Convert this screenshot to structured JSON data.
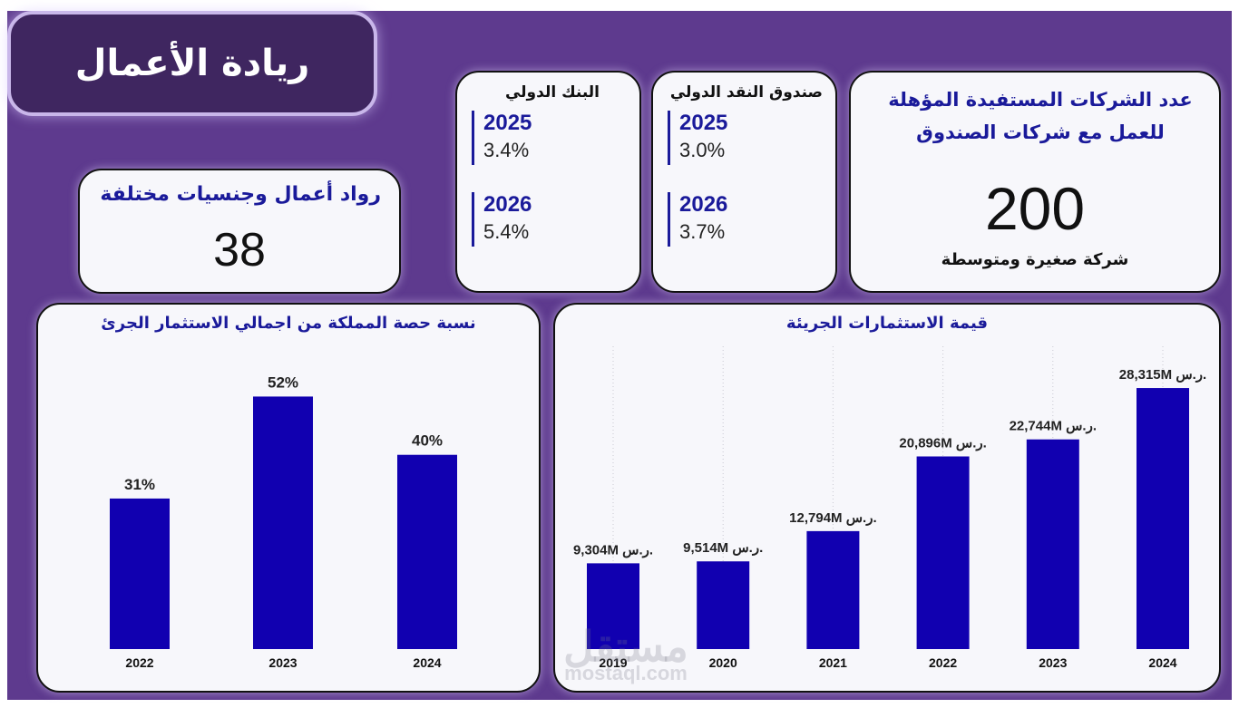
{
  "title": "ريادة الأعمال",
  "entrepreneurs": {
    "label": "رواد أعمال وجنسيات مختلفة",
    "value": "38"
  },
  "world_bank": {
    "title": "البنك الدولي",
    "rates": [
      {
        "year": "2025",
        "value": "3.4%"
      },
      {
        "year": "2026",
        "value": "5.4%"
      }
    ]
  },
  "imf": {
    "title": "صندوق النقد الدولي",
    "rates": [
      {
        "year": "2025",
        "value": "3.0%"
      },
      {
        "year": "2026",
        "value": "3.7%"
      }
    ]
  },
  "companies": {
    "title": "عدد الشركات المستفيدة المؤهلة للعمل مع شركات الصندوق",
    "value": "200",
    "subtitle": "شركة صغيرة ومتوسطة"
  },
  "colors": {
    "background": "#5e3a8e",
    "bar": "#1100b0",
    "navy_text": "#1a1a9a"
  },
  "watermark": {
    "arabic": "مستقل",
    "latin": "mostaql.com"
  },
  "chart_data": [
    {
      "type": "bar",
      "title": "نسبة حصة المملكة من اجمالي الاستثمار الجرئ",
      "categories": [
        "2022",
        "2023",
        "2024"
      ],
      "values": [
        31,
        52,
        40
      ],
      "labels": [
        "31%",
        "52%",
        "40%"
      ],
      "ylim": [
        0,
        56
      ],
      "xlabel": "",
      "ylabel": "",
      "grid": false
    },
    {
      "type": "bar",
      "title": "قيمة الاستثمارات الجريئة",
      "categories": [
        "2019",
        "2020",
        "2021",
        "2022",
        "2023",
        "2024"
      ],
      "values": [
        9304,
        9514,
        12794,
        20896,
        22744,
        28315
      ],
      "labels": [
        "9,304M ر.س.",
        "9,514M ر.س.",
        "12,794M ر.س.",
        "20,896M ر.س.",
        "22,744M ر.س.",
        "28,315M ر.س."
      ],
      "unit": "M ر.س.",
      "ylim": [
        0,
        29500
      ],
      "xlabel": "",
      "ylabel": "",
      "grid": "vertical dotted"
    }
  ]
}
